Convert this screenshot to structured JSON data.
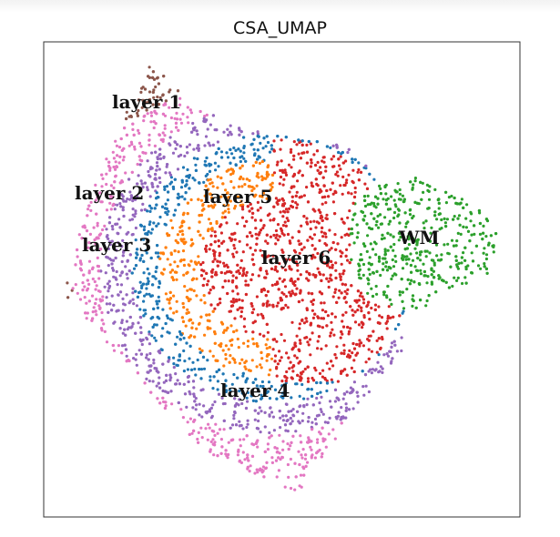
{
  "chart_data": {
    "type": "scatter",
    "title": "CSA_UMAP",
    "xlabel": "",
    "ylabel": "",
    "grid": false,
    "legend": "none",
    "series": [
      {
        "name": "layer 1",
        "color": "#8c564b"
      },
      {
        "name": "layer 2",
        "color": "#e377c2"
      },
      {
        "name": "layer 3",
        "color": "#9467bd"
      },
      {
        "name": "layer 4",
        "color": "#1f77b4"
      },
      {
        "name": "layer 5",
        "color": "#ff7f0e"
      },
      {
        "name": "layer 6",
        "color": "#d62728"
      },
      {
        "name": "WM",
        "color": "#2ca02c"
      }
    ]
  }
}
